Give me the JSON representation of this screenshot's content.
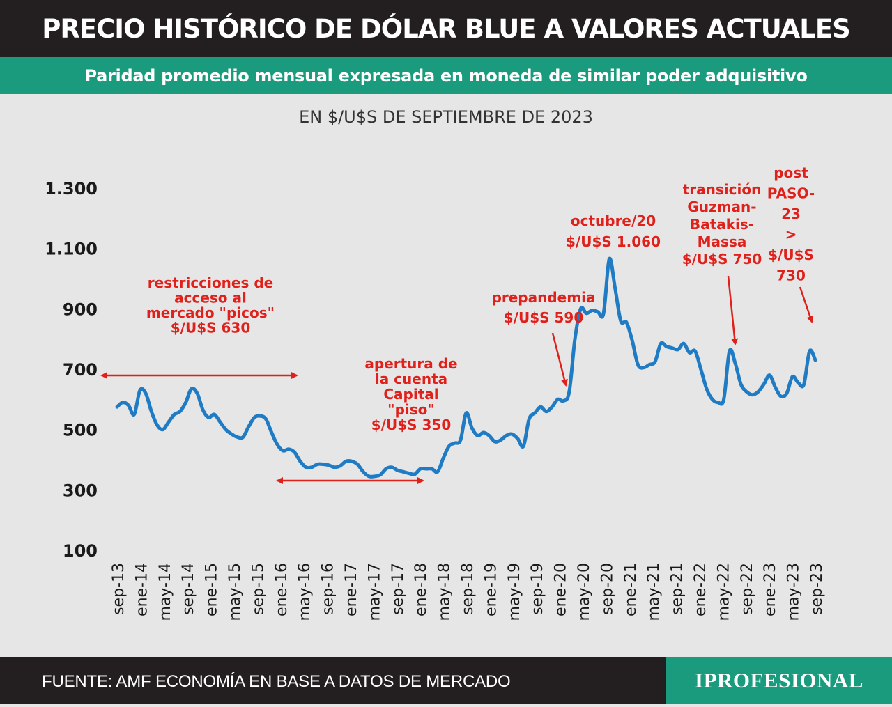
{
  "header": {
    "title": "PRECIO HISTÓRICO DE DÓLAR BLUE A VALORES ACTUALES",
    "subtitle": "Paridad promedio mensual expresada en moneda de similar poder adquisitivo"
  },
  "footer": {
    "source": "FUENTE: AMF ECONOMÍA EN BASE A DATOS DE MERCADO",
    "logo": "IPROFESIONAL"
  },
  "colors": {
    "line": "#1f7cc4",
    "annotation": "#e0201b",
    "accent": "#1a9b7d",
    "dark": "#231f20",
    "background": "#e6e6e6"
  },
  "chart_data": {
    "type": "line",
    "unit_label": "EN $/U$S DE SEPTIEMBRE DE 2023",
    "ylim": [
      100,
      1300
    ],
    "yticks": [
      {
        "value": 1300,
        "label": "1.300"
      },
      {
        "value": 1100,
        "label": "1.100"
      },
      {
        "value": 900,
        "label": "900"
      },
      {
        "value": 700,
        "label": "700"
      },
      {
        "value": 500,
        "label": "500"
      },
      {
        "value": 300,
        "label": "300"
      },
      {
        "value": 100,
        "label": "100"
      }
    ],
    "xticks": [
      "sep-13",
      "ene-14",
      "may-14",
      "sep-14",
      "ene-15",
      "may-15",
      "sep-15",
      "ene-16",
      "may-16",
      "sep-16",
      "ene-17",
      "may-17",
      "sep-17",
      "ene-18",
      "may-18",
      "sep-18",
      "ene-19",
      "may-19",
      "sep-19",
      "ene-20",
      "may-20",
      "sep-20",
      "ene-21",
      "may-21",
      "sep-21",
      "ene-22",
      "may-22",
      "sep-22",
      "ene-23",
      "may-23",
      "sep-23"
    ],
    "grid": false,
    "series": [
      {
        "values": [
          575,
          590,
          580,
          550,
          630,
          620,
          560,
          515,
          500,
          525,
          550,
          560,
          590,
          635,
          620,
          565,
          540,
          550,
          525,
          500,
          485,
          475,
          475,
          510,
          540,
          545,
          535,
          490,
          450,
          430,
          435,
          425,
          395,
          375,
          375,
          385,
          385,
          382,
          375,
          380,
          395,
          395,
          385,
          360,
          345,
          345,
          350,
          370,
          375,
          365,
          360,
          355,
          352,
          370,
          370,
          370,
          360,
          405,
          445,
          455,
          465,
          555,
          505,
          480,
          490,
          480,
          460,
          465,
          480,
          485,
          470,
          445,
          535,
          555,
          575,
          560,
          575,
          600,
          595,
          625,
          800,
          900,
          885,
          895,
          890,
          885,
          1065,
          970,
          860,
          855,
          795,
          715,
          705,
          715,
          725,
          785,
          775,
          770,
          765,
          785,
          755,
          760,
          700,
          635,
          600,
          590,
          600,
          760,
          720,
          650,
          625,
          615,
          625,
          650,
          680,
          640,
          610,
          620,
          675,
          655,
          650,
          760,
          730
        ]
      }
    ],
    "annotations": [
      {
        "text": "restricciones de\nacceso al\nmercado \"picos\"\n$/U$S 630"
      },
      {
        "text": "apertura de\nla cuenta\nCapital\n\"piso\"\n$/U$S 350"
      },
      {
        "text": "prepandemia\n$/U$S 590"
      },
      {
        "text": "octubre/20\n$/U$S 1.060"
      },
      {
        "text": "transición\nGuzman-\nBatakis-\nMassa\n$/U$S 750"
      },
      {
        "text": "post\nPASO-\n23\n>\n$/U$S\n730"
      }
    ]
  }
}
